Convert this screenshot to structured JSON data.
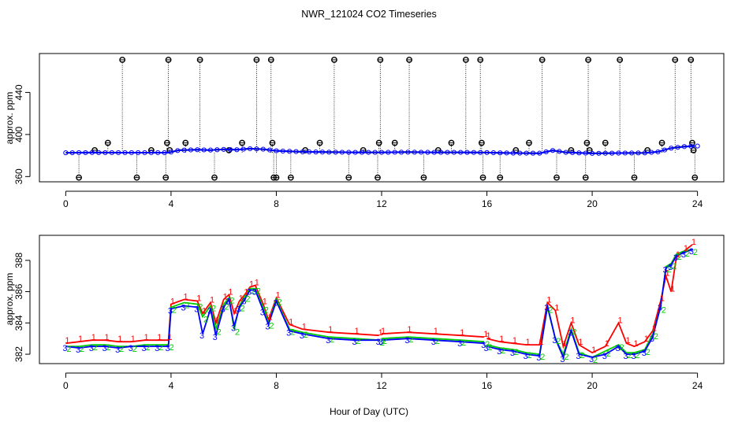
{
  "title": "NWR_121024  CO2 Timeseries",
  "xlabel": "Hour of Day (UTC)",
  "colors": {
    "frame": "#000000",
    "flag": "#000000",
    "series1": "#ff0000",
    "series2": "#00cc00",
    "series3": "#0000ff",
    "cyan": "#00cccc"
  },
  "chart_data": [
    {
      "type": "scatter",
      "panel": "top",
      "ylabel": "approx. ppm",
      "xlim": [
        -1,
        25
      ],
      "ylim": [
        355,
        477
      ],
      "xticks": [
        0,
        4,
        8,
        12,
        16,
        20,
        24
      ],
      "yticks": [
        360,
        400,
        440
      ],
      "flag_marker": "circle-with-bar",
      "baseline_series": [
        {
          "name": "1",
          "x": [
            0,
            1,
            2,
            3,
            3.9,
            4.3,
            5,
            5.5,
            6,
            6.5,
            7,
            7.5,
            8,
            9,
            10,
            11,
            12,
            13,
            14,
            15,
            16,
            17,
            18,
            18.5,
            19,
            20,
            21,
            22,
            22.5,
            23,
            23.5,
            23.9
          ],
          "y": [
            382.6,
            382.8,
            382.7,
            382.7,
            382.7,
            385,
            385.5,
            385.2,
            385.8,
            385.5,
            386.5,
            386,
            384.5,
            383.5,
            383.2,
            383,
            383,
            383.2,
            383,
            383,
            382.8,
            382.3,
            382.2,
            384.8,
            383,
            382,
            382.3,
            382.5,
            383.5,
            387,
            388.5,
            389
          ]
        }
      ],
      "flags": [
        {
          "x": 0.5,
          "y": 359
        },
        {
          "x": 1.1,
          "y": 385
        },
        {
          "x": 1.6,
          "y": 392
        },
        {
          "x": 2.15,
          "y": 471
        },
        {
          "x": 2.7,
          "y": 359
        },
        {
          "x": 3.25,
          "y": 385
        },
        {
          "x": 3.8,
          "y": 359
        },
        {
          "x": 3.85,
          "y": 392
        },
        {
          "x": 3.9,
          "y": 471
        },
        {
          "x": 3.95,
          "y": 385
        },
        {
          "x": 4.55,
          "y": 392
        },
        {
          "x": 5.1,
          "y": 471
        },
        {
          "x": 5.65,
          "y": 359
        },
        {
          "x": 6.2,
          "y": 385
        },
        {
          "x": 6.7,
          "y": 392
        },
        {
          "x": 7.25,
          "y": 471
        },
        {
          "x": 7.8,
          "y": 471
        },
        {
          "x": 7.85,
          "y": 392
        },
        {
          "x": 7.9,
          "y": 359
        },
        {
          "x": 8.0,
          "y": 359
        },
        {
          "x": 8.55,
          "y": 359
        },
        {
          "x": 9.1,
          "y": 385
        },
        {
          "x": 9.65,
          "y": 392
        },
        {
          "x": 10.2,
          "y": 471
        },
        {
          "x": 10.75,
          "y": 359
        },
        {
          "x": 11.3,
          "y": 385
        },
        {
          "x": 11.85,
          "y": 359
        },
        {
          "x": 11.9,
          "y": 392
        },
        {
          "x": 11.95,
          "y": 471
        },
        {
          "x": 12.5,
          "y": 392
        },
        {
          "x": 13.05,
          "y": 471
        },
        {
          "x": 13.6,
          "y": 359
        },
        {
          "x": 14.15,
          "y": 385
        },
        {
          "x": 14.65,
          "y": 392
        },
        {
          "x": 15.2,
          "y": 471
        },
        {
          "x": 15.75,
          "y": 471
        },
        {
          "x": 15.8,
          "y": 392
        },
        {
          "x": 15.85,
          "y": 359
        },
        {
          "x": 16.5,
          "y": 359
        },
        {
          "x": 17.1,
          "y": 385
        },
        {
          "x": 17.6,
          "y": 392
        },
        {
          "x": 18.1,
          "y": 471
        },
        {
          "x": 18.65,
          "y": 359
        },
        {
          "x": 19.2,
          "y": 385
        },
        {
          "x": 19.75,
          "y": 359
        },
        {
          "x": 19.8,
          "y": 392
        },
        {
          "x": 19.85,
          "y": 471
        },
        {
          "x": 19.9,
          "y": 385
        },
        {
          "x": 20.5,
          "y": 392
        },
        {
          "x": 21.05,
          "y": 471
        },
        {
          "x": 21.6,
          "y": 359
        },
        {
          "x": 22.1,
          "y": 385
        },
        {
          "x": 22.65,
          "y": 392
        },
        {
          "x": 23.15,
          "y": 471
        },
        {
          "x": 23.75,
          "y": 471
        },
        {
          "x": 23.8,
          "y": 392
        },
        {
          "x": 23.85,
          "y": 385
        },
        {
          "x": 23.9,
          "y": 359
        }
      ]
    },
    {
      "type": "line",
      "panel": "bottom",
      "ylabel": "approx. ppm",
      "xlim": [
        -1,
        25
      ],
      "ylim": [
        381.4,
        389.6
      ],
      "xticks": [
        0,
        4,
        8,
        12,
        16,
        20,
        24
      ],
      "yticks": [
        382,
        384,
        386,
        388
      ],
      "series": [
        {
          "name": "1",
          "x": [
            0,
            0.5,
            1,
            1.5,
            2,
            2.5,
            3,
            3.5,
            3.9,
            4,
            4.5,
            5,
            5.2,
            5.5,
            5.7,
            6,
            6.2,
            6.4,
            6.6,
            6.8,
            7,
            7.2,
            7.5,
            7.7,
            8,
            8.5,
            9,
            10,
            11,
            11.9,
            null,
            12,
            13,
            14,
            15,
            15.9,
            null,
            16,
            16.5,
            17,
            17.5,
            18,
            18.3,
            18.6,
            18.9,
            19.2,
            19.5,
            20,
            20.5,
            21,
            21.3,
            21.6,
            22,
            22.3,
            22.6,
            22.8,
            23,
            23.2,
            23.5,
            23.8
          ],
          "y": [
            382.7,
            382.8,
            382.9,
            382.9,
            382.8,
            382.8,
            382.9,
            382.9,
            382.9,
            385.2,
            385.5,
            385.4,
            384.6,
            385.3,
            384,
            385.5,
            385.8,
            384.6,
            385.4,
            385.8,
            386.3,
            386.4,
            385.2,
            384.2,
            385.6,
            383.9,
            383.6,
            383.4,
            383.3,
            383.2,
            null,
            383.3,
            383.4,
            383.3,
            383.2,
            383.1,
            null,
            383.0,
            382.8,
            382.7,
            382.6,
            382.6,
            385.3,
            384.8,
            382.5,
            384.0,
            382.6,
            382.1,
            382.5,
            384.0,
            382.7,
            382.5,
            382.8,
            383.5,
            385.4,
            387.0,
            386.0,
            388.2,
            388.6,
            389.0
          ]
        },
        {
          "name": "2",
          "x": [
            0,
            0.5,
            1,
            1.5,
            2,
            2.5,
            3,
            3.5,
            3.9,
            4,
            4.5,
            5,
            5.2,
            5.5,
            5.7,
            6,
            6.2,
            6.4,
            6.6,
            6.8,
            7,
            7.2,
            7.5,
            7.7,
            8,
            8.5,
            9,
            10,
            11,
            11.9,
            null,
            12,
            13,
            14,
            15,
            15.9,
            null,
            16,
            16.5,
            17,
            17.5,
            18,
            18.3,
            18.6,
            18.9,
            19.2,
            19.5,
            20,
            20.5,
            21,
            21.3,
            21.6,
            22,
            22.3,
            22.6,
            22.8,
            23,
            23.2,
            23.5,
            23.8
          ],
          "y": [
            382.5,
            382.5,
            382.6,
            382.6,
            382.5,
            382.5,
            382.6,
            382.6,
            382.6,
            385.0,
            385.3,
            385.2,
            384.4,
            385.1,
            383.6,
            385.2,
            385.6,
            383.6,
            385.1,
            385.7,
            386.2,
            386.2,
            385.0,
            384.0,
            385.5,
            383.6,
            383.4,
            383.1,
            383.0,
            382.9,
            null,
            383.0,
            383.1,
            383.0,
            382.9,
            382.8,
            null,
            382.6,
            382.4,
            382.3,
            382.1,
            382.0,
            385.0,
            383.0,
            382.0,
            383.6,
            382.1,
            381.8,
            382.2,
            382.6,
            382.1,
            382.1,
            382.3,
            383.3,
            385.0,
            387.6,
            387.8,
            388.4,
            388.6,
            388.7
          ]
        },
        {
          "name": "3",
          "x": [
            0,
            0.5,
            1,
            1.5,
            2,
            2.5,
            3,
            3.5,
            3.9,
            4,
            4.5,
            5,
            5.2,
            5.5,
            5.7,
            6,
            6.2,
            6.4,
            6.6,
            6.8,
            7,
            7.2,
            7.5,
            7.7,
            8,
            8.5,
            9,
            10,
            11,
            11.9,
            null,
            12,
            13,
            14,
            15,
            15.9,
            null,
            16,
            16.5,
            17,
            17.5,
            18,
            18.3,
            18.6,
            18.9,
            19.2,
            19.5,
            20,
            20.5,
            21,
            21.3,
            21.6,
            22,
            22.3,
            22.6,
            22.8,
            23,
            23.2,
            23.5,
            23.8
          ],
          "y": [
            382.5,
            382.4,
            382.5,
            382.5,
            382.4,
            382.5,
            382.5,
            382.5,
            382.5,
            384.9,
            385.1,
            385.0,
            383.3,
            384.9,
            383.2,
            385.0,
            385.5,
            383.8,
            385.0,
            385.5,
            386.1,
            386.1,
            384.8,
            383.9,
            385.4,
            383.5,
            383.3,
            383.0,
            382.9,
            382.9,
            null,
            382.9,
            383.0,
            382.9,
            382.8,
            382.7,
            null,
            382.5,
            382.3,
            382.2,
            382.0,
            381.9,
            385.1,
            383.0,
            381.8,
            383.5,
            382.0,
            381.8,
            382.0,
            382.5,
            382.0,
            382.0,
            382.2,
            383.1,
            385.1,
            387.5,
            387.7,
            388.3,
            388.5,
            388.7
          ]
        }
      ]
    }
  ]
}
